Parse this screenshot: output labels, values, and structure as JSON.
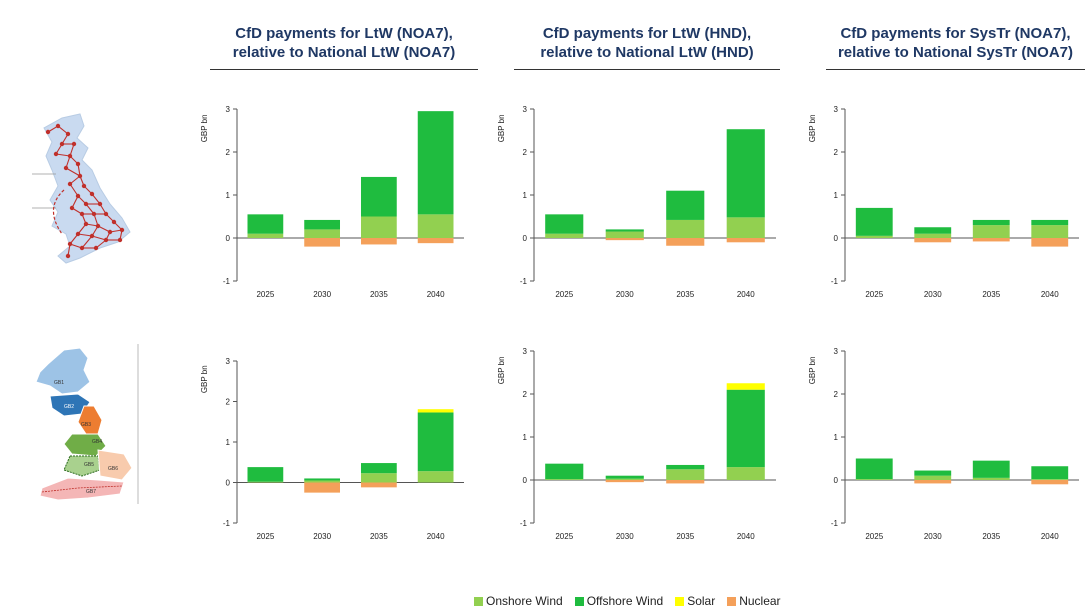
{
  "colors": {
    "onshore": "#92d050",
    "offshore": "#1fbc3f",
    "solar": "#ffff00",
    "nuclear": "#f4a05a",
    "title": "#1f3864"
  },
  "columns": [
    {
      "line1": "CfD payments for LtW (NOA7),",
      "line2": "relative to National LtW (NOA7)"
    },
    {
      "line1": "CfD payments for LtW (HND),",
      "line2": "relative to National LtW (HND)"
    },
    {
      "line1": "CfD payments for SysTr (NOA7),",
      "line2": "relative to National SysTr (NOA7)"
    }
  ],
  "maps": {
    "zone_labels": [
      "GB1",
      "GB2",
      "GB3",
      "GB4",
      "GB5",
      "GB6",
      "GB7"
    ]
  },
  "legend": [
    {
      "label": "Onshore Wind",
      "key": "onshore"
    },
    {
      "label": "Offshore Wind",
      "key": "offshore"
    },
    {
      "label": "Solar",
      "key": "solar"
    },
    {
      "label": "Nuclear",
      "key": "nuclear"
    }
  ],
  "chart_data": [
    {
      "type": "bar",
      "stacked": true,
      "ylabel": "GBP bn",
      "ylim": [
        -1,
        3
      ],
      "yticks": [
        -1,
        0,
        1,
        2,
        3
      ],
      "categories": [
        "2025",
        "2030",
        "2035",
        "2040"
      ],
      "series": [
        {
          "name": "Onshore Wind",
          "key": "onshore",
          "values": [
            0.1,
            0.2,
            0.5,
            0.55
          ]
        },
        {
          "name": "Offshore Wind",
          "key": "offshore",
          "values": [
            0.45,
            0.22,
            0.92,
            2.4
          ]
        },
        {
          "name": "Solar",
          "key": "solar",
          "values": [
            0,
            0,
            0,
            0
          ]
        },
        {
          "name": "Nuclear",
          "key": "nuclear",
          "values": [
            0,
            -0.2,
            -0.15,
            -0.12
          ]
        }
      ]
    },
    {
      "type": "bar",
      "stacked": true,
      "ylabel": "GBP bn",
      "ylim": [
        -1,
        3
      ],
      "yticks": [
        -1,
        0,
        1,
        2,
        3
      ],
      "categories": [
        "2025",
        "2030",
        "2035",
        "2040"
      ],
      "series": [
        {
          "name": "Onshore Wind",
          "key": "onshore",
          "values": [
            0.1,
            0.15,
            0.42,
            0.48
          ]
        },
        {
          "name": "Offshore Wind",
          "key": "offshore",
          "values": [
            0.45,
            0.05,
            0.68,
            2.05
          ]
        },
        {
          "name": "Solar",
          "key": "solar",
          "values": [
            0,
            0,
            0,
            0
          ]
        },
        {
          "name": "Nuclear",
          "key": "nuclear",
          "values": [
            0,
            -0.05,
            -0.18,
            -0.1
          ]
        }
      ]
    },
    {
      "type": "bar",
      "stacked": true,
      "ylabel": "GBP bn",
      "ylim": [
        -1,
        3
      ],
      "yticks": [
        -1,
        0,
        1,
        2,
        3
      ],
      "categories": [
        "2025",
        "2030",
        "2035",
        "2040"
      ],
      "series": [
        {
          "name": "Onshore Wind",
          "key": "onshore",
          "values": [
            0.05,
            0.1,
            0.3,
            0.3
          ]
        },
        {
          "name": "Offshore Wind",
          "key": "offshore",
          "values": [
            0.65,
            0.15,
            0.12,
            0.12
          ]
        },
        {
          "name": "Solar",
          "key": "solar",
          "values": [
            0,
            0,
            0,
            0
          ]
        },
        {
          "name": "Nuclear",
          "key": "nuclear",
          "values": [
            0,
            -0.1,
            -0.08,
            -0.2
          ]
        }
      ]
    },
    {
      "type": "bar",
      "stacked": true,
      "ylabel": "GBP bn",
      "ylim": [
        -1,
        3
      ],
      "yticks": [
        -1,
        0,
        1,
        2,
        3
      ],
      "categories": [
        "2025",
        "2030",
        "2035",
        "2040"
      ],
      "series": [
        {
          "name": "Onshore Wind",
          "key": "onshore",
          "values": [
            0.02,
            0.05,
            0.23,
            0.28
          ]
        },
        {
          "name": "Offshore Wind",
          "key": "offshore",
          "values": [
            0.36,
            0.05,
            0.25,
            1.45
          ]
        },
        {
          "name": "Solar",
          "key": "solar",
          "values": [
            0,
            0,
            0,
            0.08
          ]
        },
        {
          "name": "Nuclear",
          "key": "nuclear",
          "values": [
            0,
            -0.25,
            -0.12,
            0
          ]
        }
      ]
    },
    {
      "type": "bar",
      "stacked": true,
      "ylabel": "GBP bn",
      "ylim": [
        -1,
        3
      ],
      "yticks": [
        -1,
        0,
        1,
        2,
        3
      ],
      "categories": [
        "2025",
        "2030",
        "2035",
        "2040"
      ],
      "series": [
        {
          "name": "Onshore Wind",
          "key": "onshore",
          "values": [
            0.02,
            0.03,
            0.25,
            0.3
          ]
        },
        {
          "name": "Offshore Wind",
          "key": "offshore",
          "values": [
            0.36,
            0.07,
            0.1,
            1.8
          ]
        },
        {
          "name": "Solar",
          "key": "solar",
          "values": [
            0,
            0,
            0,
            0.15
          ]
        },
        {
          "name": "Nuclear",
          "key": "nuclear",
          "values": [
            0,
            -0.05,
            -0.08,
            0
          ]
        }
      ]
    },
    {
      "type": "bar",
      "stacked": true,
      "ylabel": "GBP bn",
      "ylim": [
        -1,
        3
      ],
      "yticks": [
        -1,
        0,
        1,
        2,
        3
      ],
      "categories": [
        "2025",
        "2030",
        "2035",
        "2040"
      ],
      "series": [
        {
          "name": "Onshore Wind",
          "key": "onshore",
          "values": [
            0.02,
            0.1,
            0.05,
            0.02
          ]
        },
        {
          "name": "Offshore Wind",
          "key": "offshore",
          "values": [
            0.48,
            0.12,
            0.4,
            0.3
          ]
        },
        {
          "name": "Solar",
          "key": "solar",
          "values": [
            0,
            0,
            0,
            0
          ]
        },
        {
          "name": "Nuclear",
          "key": "nuclear",
          "values": [
            0,
            -0.08,
            0,
            -0.1
          ]
        }
      ]
    }
  ]
}
